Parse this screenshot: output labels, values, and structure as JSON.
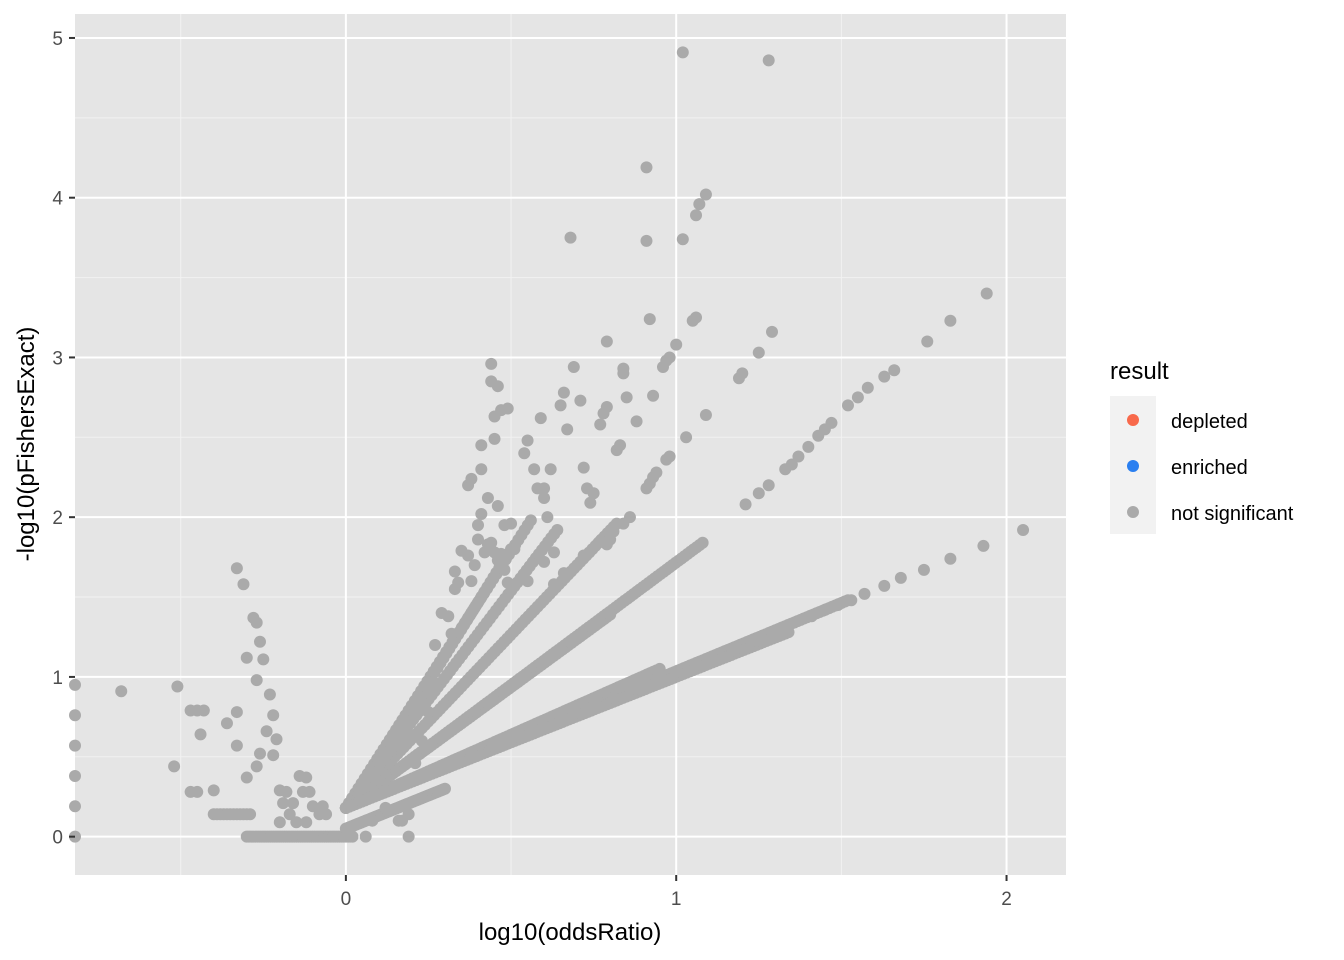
{
  "chart_data": {
    "type": "scatter",
    "xlabel": "log10(oddsRatio)",
    "ylabel": "-log10(pFishersExact)",
    "xlim": [
      -0.82,
      2.18
    ],
    "ylim": [
      -0.24,
      5.15
    ],
    "x_ticks": [
      0,
      1,
      2
    ],
    "x_tick_labels": [
      "0",
      "1",
      "2"
    ],
    "y_ticks": [
      0,
      1,
      2,
      3,
      4,
      5
    ],
    "y_tick_labels": [
      "0",
      "1",
      "2",
      "3",
      "4",
      "5"
    ],
    "grid": true,
    "panel_background": "#e5e5e5",
    "legend": {
      "title": "result",
      "position": "right",
      "entries": [
        {
          "label": "depleted",
          "color": "#f8694b"
        },
        {
          "label": "enriched",
          "color": "#2a7ff0"
        },
        {
          "label": "not significant",
          "color": "#aaaaaa"
        }
      ]
    },
    "point_color": "#aaaaaa",
    "series": [
      {
        "name": "not significant",
        "points": [
          [
            -0.82,
            0.95
          ],
          [
            -0.82,
            0.76
          ],
          [
            -0.82,
            0.57
          ],
          [
            -0.82,
            0.38
          ],
          [
            -0.82,
            0.19
          ],
          [
            -0.82,
            0.0
          ],
          [
            -0.68,
            0.91
          ],
          [
            -0.51,
            0.94
          ],
          [
            -0.47,
            0.79
          ],
          [
            -0.45,
            0.79
          ],
          [
            -0.43,
            0.79
          ],
          [
            -0.44,
            0.64
          ],
          [
            -0.52,
            0.44
          ],
          [
            -0.47,
            0.28
          ],
          [
            -0.45,
            0.28
          ],
          [
            -0.4,
            0.29
          ],
          [
            -0.36,
            0.71
          ],
          [
            -0.33,
            0.57
          ],
          [
            -0.33,
            0.78
          ],
          [
            -0.33,
            1.68
          ],
          [
            -0.31,
            1.58
          ],
          [
            -0.3,
            1.12
          ],
          [
            -0.3,
            0.37
          ],
          [
            -0.28,
            1.37
          ],
          [
            -0.27,
            1.34
          ],
          [
            -0.26,
            1.22
          ],
          [
            -0.27,
            0.98
          ],
          [
            -0.25,
            1.11
          ],
          [
            -0.26,
            0.52
          ],
          [
            -0.27,
            0.44
          ],
          [
            -0.24,
            0.66
          ],
          [
            -0.23,
            0.89
          ],
          [
            -0.22,
            0.76
          ],
          [
            -0.21,
            0.61
          ],
          [
            -0.22,
            0.51
          ],
          [
            -0.2,
            0.29
          ],
          [
            -0.19,
            0.21
          ],
          [
            -0.18,
            0.28
          ],
          [
            -0.17,
            0.14
          ],
          [
            -0.16,
            0.21
          ],
          [
            -0.14,
            0.38
          ],
          [
            -0.12,
            0.37
          ],
          [
            -0.13,
            0.28
          ],
          [
            -0.11,
            0.28
          ],
          [
            -0.1,
            0.19
          ],
          [
            -0.08,
            0.14
          ],
          [
            -0.07,
            0.19
          ],
          [
            -0.06,
            0.14
          ],
          [
            -0.12,
            0.09
          ],
          [
            -0.15,
            0.09
          ],
          [
            -0.2,
            0.09
          ],
          [
            0.06,
            0.0
          ],
          [
            0.08,
            0.1
          ],
          [
            0.12,
            0.18
          ],
          [
            0.16,
            0.1
          ],
          [
            0.17,
            0.1
          ],
          [
            0.19,
            0.0
          ],
          [
            0.19,
            0.14
          ],
          [
            0.21,
            0.46
          ],
          [
            0.23,
            0.6
          ],
          [
            0.25,
            0.78
          ],
          [
            0.27,
            1.2
          ],
          [
            0.29,
            1.4
          ],
          [
            0.31,
            1.38
          ],
          [
            0.32,
            1.27
          ],
          [
            0.33,
            1.55
          ],
          [
            0.33,
            1.66
          ],
          [
            0.34,
            1.59
          ],
          [
            0.35,
            1.79
          ],
          [
            0.37,
            1.76
          ],
          [
            0.38,
            1.6
          ],
          [
            0.39,
            1.7
          ],
          [
            0.4,
            1.95
          ],
          [
            0.4,
            1.86
          ],
          [
            0.41,
            2.02
          ],
          [
            0.42,
            1.78
          ],
          [
            0.43,
            1.83
          ],
          [
            0.44,
            1.84
          ],
          [
            0.45,
            1.78
          ],
          [
            0.46,
            1.73
          ],
          [
            0.47,
            1.77
          ],
          [
            0.48,
            1.67
          ],
          [
            0.49,
            1.59
          ],
          [
            0.37,
            2.2
          ],
          [
            0.38,
            2.24
          ],
          [
            0.41,
            2.3
          ],
          [
            0.43,
            2.12
          ],
          [
            0.45,
            2.49
          ],
          [
            0.46,
            2.07
          ],
          [
            0.48,
            1.95
          ],
          [
            0.5,
            1.96
          ],
          [
            0.51,
            1.8
          ],
          [
            0.41,
            2.45
          ],
          [
            0.44,
            2.96
          ],
          [
            0.44,
            2.85
          ],
          [
            0.46,
            2.82
          ],
          [
            0.45,
            2.63
          ],
          [
            0.47,
            2.67
          ],
          [
            0.49,
            2.68
          ],
          [
            0.54,
            2.4
          ],
          [
            0.55,
            2.48
          ],
          [
            0.57,
            2.3
          ],
          [
            0.58,
            2.18
          ],
          [
            0.59,
            2.62
          ],
          [
            0.6,
            2.18
          ],
          [
            0.6,
            2.12
          ],
          [
            0.61,
            2.0
          ],
          [
            0.62,
            2.3
          ],
          [
            0.63,
            1.78
          ],
          [
            0.65,
            2.7
          ],
          [
            0.66,
            2.78
          ],
          [
            0.67,
            2.55
          ],
          [
            0.69,
            2.94
          ],
          [
            0.71,
            2.73
          ],
          [
            0.72,
            2.31
          ],
          [
            0.73,
            2.18
          ],
          [
            0.74,
            2.09
          ],
          [
            0.77,
            2.58
          ],
          [
            0.78,
            2.65
          ],
          [
            0.79,
            2.69
          ],
          [
            0.79,
            3.1
          ],
          [
            0.82,
            2.42
          ],
          [
            0.83,
            2.45
          ],
          [
            0.84,
            2.9
          ],
          [
            0.84,
            2.93
          ],
          [
            0.88,
            2.6
          ],
          [
            0.91,
            2.18
          ],
          [
            0.92,
            2.21
          ],
          [
            0.93,
            2.25
          ],
          [
            0.94,
            2.28
          ],
          [
            0.97,
            2.36
          ],
          [
            0.98,
            2.38
          ],
          [
            0.96,
            2.94
          ],
          [
            0.97,
            2.98
          ],
          [
            0.98,
            3.0
          ],
          [
            1.0,
            3.08
          ],
          [
            1.05,
            3.23
          ],
          [
            1.06,
            3.25
          ],
          [
            1.09,
            2.64
          ],
          [
            1.03,
            2.5
          ],
          [
            1.07,
            3.96
          ],
          [
            1.06,
            3.89
          ],
          [
            1.09,
            4.02
          ],
          [
            1.02,
            4.91
          ],
          [
            1.02,
            3.74
          ],
          [
            0.91,
            4.19
          ],
          [
            0.91,
            3.73
          ],
          [
            0.92,
            3.24
          ],
          [
            0.68,
            3.75
          ],
          [
            1.28,
            4.86
          ],
          [
            1.19,
            2.87
          ],
          [
            1.2,
            2.9
          ],
          [
            1.25,
            3.03
          ],
          [
            1.29,
            3.16
          ],
          [
            1.21,
            2.08
          ],
          [
            1.25,
            2.15
          ],
          [
            1.28,
            2.2
          ],
          [
            1.33,
            2.3
          ],
          [
            1.35,
            2.33
          ],
          [
            1.37,
            2.38
          ],
          [
            1.4,
            2.44
          ],
          [
            1.43,
            2.51
          ],
          [
            1.45,
            2.55
          ],
          [
            1.47,
            2.59
          ],
          [
            1.52,
            2.7
          ],
          [
            1.55,
            2.75
          ],
          [
            1.58,
            2.81
          ],
          [
            1.63,
            2.88
          ],
          [
            1.66,
            2.92
          ],
          [
            1.76,
            3.1
          ],
          [
            1.83,
            3.23
          ],
          [
            1.94,
            3.4
          ],
          [
            1.53,
            1.48
          ],
          [
            1.57,
            1.52
          ],
          [
            1.63,
            1.57
          ],
          [
            1.68,
            1.62
          ],
          [
            1.75,
            1.67
          ],
          [
            1.83,
            1.74
          ],
          [
            1.93,
            1.82
          ],
          [
            2.05,
            1.92
          ],
          [
            1.49,
            1.45
          ],
          [
            1.45,
            1.42
          ],
          [
            1.41,
            1.38
          ],
          [
            0.85,
            2.75
          ],
          [
            0.93,
            2.76
          ],
          [
            0.63,
            1.58
          ],
          [
            0.66,
            1.65
          ],
          [
            0.72,
            1.76
          ],
          [
            0.77,
            1.85
          ],
          [
            0.81,
            1.91
          ],
          [
            0.84,
            1.96
          ],
          [
            0.86,
            2.0
          ],
          [
            0.55,
            1.6
          ],
          [
            0.6,
            1.72
          ],
          [
            0.75,
            2.15
          ],
          [
            0.79,
            1.83
          ],
          [
            0.8,
            1.86
          ]
        ],
        "bands": [
          {
            "x": [
              0.0,
              1.08
            ],
            "y": [
              0.18,
              1.84
            ],
            "count": 120
          },
          {
            "x": [
              0.0,
              1.52
            ],
            "y": [
              0.18,
              1.48
            ],
            "count": 160
          },
          {
            "x": [
              0.0,
              0.82
            ],
            "y": [
              0.18,
              1.96
            ],
            "count": 90
          },
          {
            "x": [
              0.0,
              0.64
            ],
            "y": [
              0.18,
              1.92
            ],
            "count": 70
          },
          {
            "x": [
              0.0,
              0.56
            ],
            "y": [
              0.18,
              1.98
            ],
            "count": 60
          },
          {
            "x": [
              0.02,
              0.5
            ],
            "y": [
              0.2,
              1.8
            ],
            "count": 55
          },
          {
            "x": [
              0.0,
              0.8
            ],
            "y": [
              0.18,
              1.39
            ],
            "count": 90
          },
          {
            "x": [
              0.0,
              0.95
            ],
            "y": [
              0.18,
              1.05
            ],
            "count": 100
          },
          {
            "x": [
              0.0,
              1.34
            ],
            "y": [
              0.18,
              1.28
            ],
            "count": 140
          },
          {
            "x": [
              -0.3,
              0.02
            ],
            "y": [
              0.0,
              0.0
            ],
            "count": 50
          },
          {
            "x": [
              -0.4,
              -0.29
            ],
            "y": [
              0.14,
              0.14
            ],
            "count": 12
          },
          {
            "x": [
              0.0,
              0.3
            ],
            "y": [
              0.05,
              0.3
            ],
            "count": 60
          }
        ]
      }
    ]
  }
}
